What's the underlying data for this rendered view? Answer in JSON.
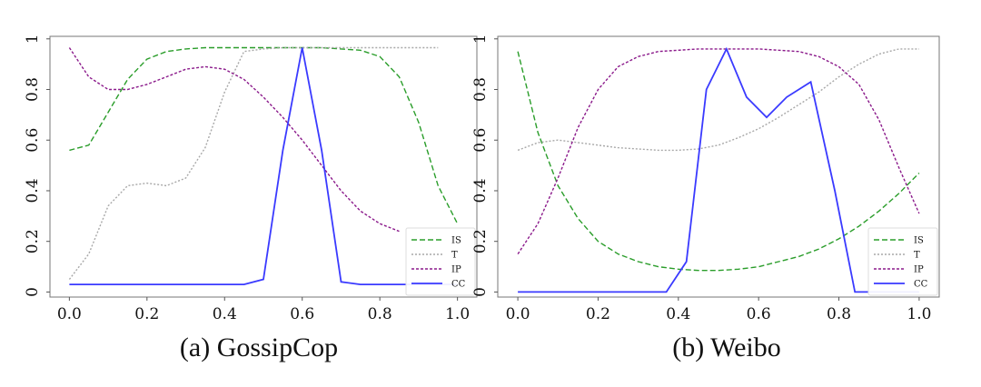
{
  "chart_data": [
    {
      "type": "line",
      "title": "",
      "caption": "(a) GossipCop",
      "xlabel": "",
      "ylabel": "",
      "xlim": [
        -0.05,
        1.05
      ],
      "ylim": [
        -0.02,
        1.01
      ],
      "xticks": [
        0.0,
        0.2,
        0.4,
        0.6,
        0.8,
        1.0
      ],
      "xtick_labels": [
        "0.0",
        "0.2",
        "0.4",
        "0.6",
        "0.8",
        "1.0"
      ],
      "yticks": [
        0,
        0.2,
        0.4,
        0.6,
        0.8,
        1
      ],
      "ytick_labels": [
        "0",
        "0.2",
        "0.4",
        "0.6",
        "0.8",
        "1"
      ],
      "legend_position": "bottom-right",
      "series": [
        {
          "name": "IS",
          "color": "#2a9d2a",
          "dash": "6,3",
          "x": [
            0.0,
            0.05,
            0.1,
            0.15,
            0.2,
            0.25,
            0.3,
            0.35,
            0.4,
            0.45,
            0.5,
            0.55,
            0.6,
            0.65,
            0.7,
            0.75,
            0.8,
            0.85,
            0.9,
            0.95,
            1.0
          ],
          "y": [
            0.56,
            0.58,
            0.71,
            0.84,
            0.92,
            0.95,
            0.96,
            0.965,
            0.965,
            0.965,
            0.965,
            0.965,
            0.965,
            0.965,
            0.96,
            0.955,
            0.93,
            0.85,
            0.67,
            0.42,
            0.27
          ]
        },
        {
          "name": "T",
          "color": "#a8a8a8",
          "dash": "2,2",
          "x": [
            0.0,
            0.05,
            0.1,
            0.15,
            0.2,
            0.25,
            0.3,
            0.35,
            0.4,
            0.45,
            0.5,
            0.55,
            0.6,
            0.65,
            0.7,
            0.75,
            0.8,
            0.85,
            0.9,
            0.95
          ],
          "y": [
            0.05,
            0.15,
            0.34,
            0.42,
            0.43,
            0.42,
            0.45,
            0.57,
            0.79,
            0.95,
            0.96,
            0.965,
            0.965,
            0.965,
            0.965,
            0.965,
            0.965,
            0.965,
            0.965,
            0.965
          ]
        },
        {
          "name": "IP",
          "color": "#8b1a8b",
          "dash": "3,2",
          "x": [
            0.0,
            0.05,
            0.1,
            0.15,
            0.2,
            0.25,
            0.3,
            0.35,
            0.4,
            0.45,
            0.5,
            0.55,
            0.6,
            0.65,
            0.7,
            0.75,
            0.8,
            0.85
          ],
          "y": [
            0.965,
            0.85,
            0.8,
            0.8,
            0.82,
            0.85,
            0.88,
            0.89,
            0.88,
            0.84,
            0.77,
            0.69,
            0.6,
            0.5,
            0.4,
            0.32,
            0.27,
            0.24
          ]
        },
        {
          "name": "CC",
          "color": "#3a3aff",
          "dash": "",
          "x": [
            0.0,
            0.05,
            0.1,
            0.15,
            0.2,
            0.25,
            0.3,
            0.35,
            0.4,
            0.45,
            0.5,
            0.55,
            0.6,
            0.65,
            0.7,
            0.75,
            0.8,
            0.85,
            0.9,
            0.95,
            1.0
          ],
          "y": [
            0.03,
            0.03,
            0.03,
            0.03,
            0.03,
            0.03,
            0.03,
            0.03,
            0.03,
            0.03,
            0.05,
            0.56,
            0.965,
            0.56,
            0.04,
            0.03,
            0.03,
            0.03,
            0.03,
            0.03,
            0.03
          ]
        }
      ]
    },
    {
      "type": "line",
      "title": "",
      "caption": "(b) Weibo",
      "xlabel": "",
      "ylabel": "",
      "xlim": [
        -0.05,
        1.05
      ],
      "ylim": [
        -0.02,
        1.01
      ],
      "xticks": [
        0.0,
        0.2,
        0.4,
        0.6,
        0.8,
        1.0
      ],
      "xtick_labels": [
        "0.0",
        "0.2",
        "0.4",
        "0.6",
        "0.8",
        "1.0"
      ],
      "yticks": [
        0,
        0.2,
        0.4,
        0.6,
        0.8,
        1
      ],
      "ytick_labels": [
        "0",
        "0.2",
        "0.4",
        "0.6",
        "0.8",
        "1"
      ],
      "legend_position": "bottom-right",
      "series": [
        {
          "name": "IS",
          "color": "#2a9d2a",
          "dash": "6,3",
          "x": [
            0.0,
            0.05,
            0.1,
            0.15,
            0.2,
            0.25,
            0.3,
            0.35,
            0.4,
            0.45,
            0.5,
            0.55,
            0.6,
            0.65,
            0.7,
            0.75,
            0.8,
            0.85,
            0.9,
            0.95,
            1.0
          ],
          "y": [
            0.95,
            0.63,
            0.42,
            0.29,
            0.2,
            0.15,
            0.12,
            0.1,
            0.09,
            0.085,
            0.085,
            0.09,
            0.1,
            0.12,
            0.14,
            0.17,
            0.21,
            0.26,
            0.32,
            0.39,
            0.47
          ]
        },
        {
          "name": "T",
          "color": "#a8a8a8",
          "dash": "2,2",
          "x": [
            0.0,
            0.05,
            0.1,
            0.15,
            0.2,
            0.25,
            0.3,
            0.35,
            0.4,
            0.45,
            0.5,
            0.55,
            0.6,
            0.65,
            0.7,
            0.75,
            0.8,
            0.85,
            0.9,
            0.95,
            1.0
          ],
          "y": [
            0.56,
            0.59,
            0.6,
            0.59,
            0.58,
            0.57,
            0.565,
            0.56,
            0.56,
            0.565,
            0.58,
            0.61,
            0.645,
            0.69,
            0.74,
            0.79,
            0.85,
            0.9,
            0.94,
            0.96,
            0.96
          ]
        },
        {
          "name": "IP",
          "color": "#8b1a8b",
          "dash": "3,2",
          "x": [
            0.0,
            0.05,
            0.1,
            0.15,
            0.2,
            0.25,
            0.3,
            0.35,
            0.4,
            0.45,
            0.5,
            0.55,
            0.6,
            0.65,
            0.7,
            0.75,
            0.8,
            0.85,
            0.9,
            0.95,
            1.0
          ],
          "y": [
            0.15,
            0.27,
            0.45,
            0.65,
            0.8,
            0.89,
            0.93,
            0.95,
            0.955,
            0.96,
            0.96,
            0.96,
            0.96,
            0.955,
            0.95,
            0.93,
            0.89,
            0.82,
            0.68,
            0.49,
            0.31
          ]
        },
        {
          "name": "CC",
          "color": "#3a3aff",
          "dash": "",
          "x": [
            0.0,
            0.05,
            0.1,
            0.15,
            0.2,
            0.25,
            0.3,
            0.35,
            0.37,
            0.42,
            0.47,
            0.52,
            0.57,
            0.62,
            0.67,
            0.73,
            0.79,
            0.84,
            0.9,
            0.95,
            1.0
          ],
          "y": [
            0.0,
            0.0,
            0.0,
            0.0,
            0.0,
            0.0,
            0.0,
            0.0,
            0.0,
            0.12,
            0.8,
            0.96,
            0.77,
            0.69,
            0.77,
            0.83,
            0.4,
            0.0,
            0.0,
            0.0,
            0.0
          ]
        }
      ]
    }
  ]
}
